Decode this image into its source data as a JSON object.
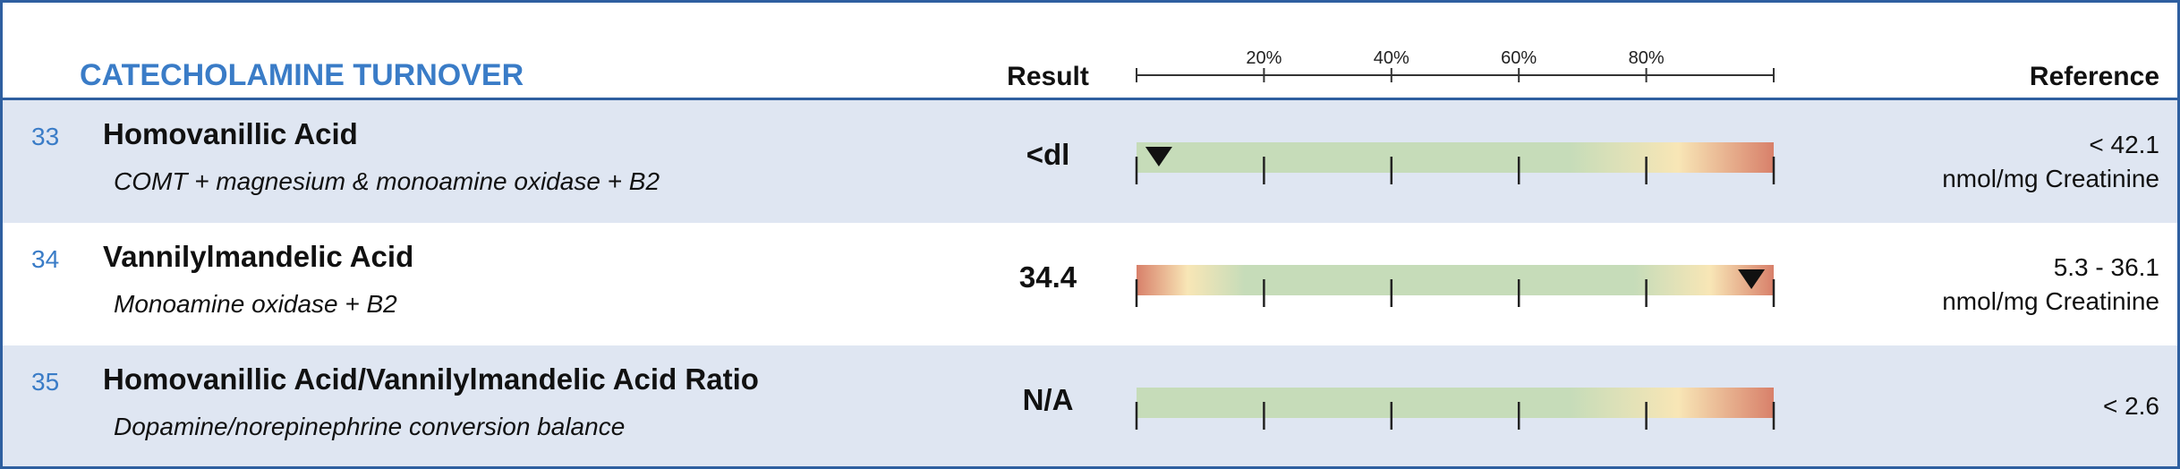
{
  "header": {
    "title": "CATECHOLAMINE TURNOVER",
    "result": "Result",
    "reference": "Reference"
  },
  "scale": {
    "xlim": [
      0,
      100
    ],
    "xticks": [
      {
        "value": 20,
        "label": "20%"
      },
      {
        "value": 40,
        "label": "40%"
      },
      {
        "value": 60,
        "label": "60%"
      },
      {
        "value": 80,
        "label": "80%"
      }
    ]
  },
  "rows": [
    {
      "number": "33",
      "name": "Homovanillic Acid",
      "description": "COMT + magnesium & monoamine oxidase + B2",
      "result": "<dl",
      "marker": 3.5,
      "reference": "< 42.1",
      "unit": "nmol/mg Creatinine"
    },
    {
      "number": "34",
      "name": "Vannilylmandelic Acid",
      "description": "Monoamine oxidase + B2",
      "result": "34.4",
      "marker": 96.5,
      "reference": "5.3 - 36.1",
      "unit": "nmol/mg Creatinine"
    },
    {
      "number": "35",
      "name": "Homovanillic Acid/Vannilylmandelic Acid Ratio",
      "description": "Dopamine/norepinephrine conversion balance",
      "result": "N/A",
      "marker": null,
      "reference": "< 2.6"
    }
  ]
}
